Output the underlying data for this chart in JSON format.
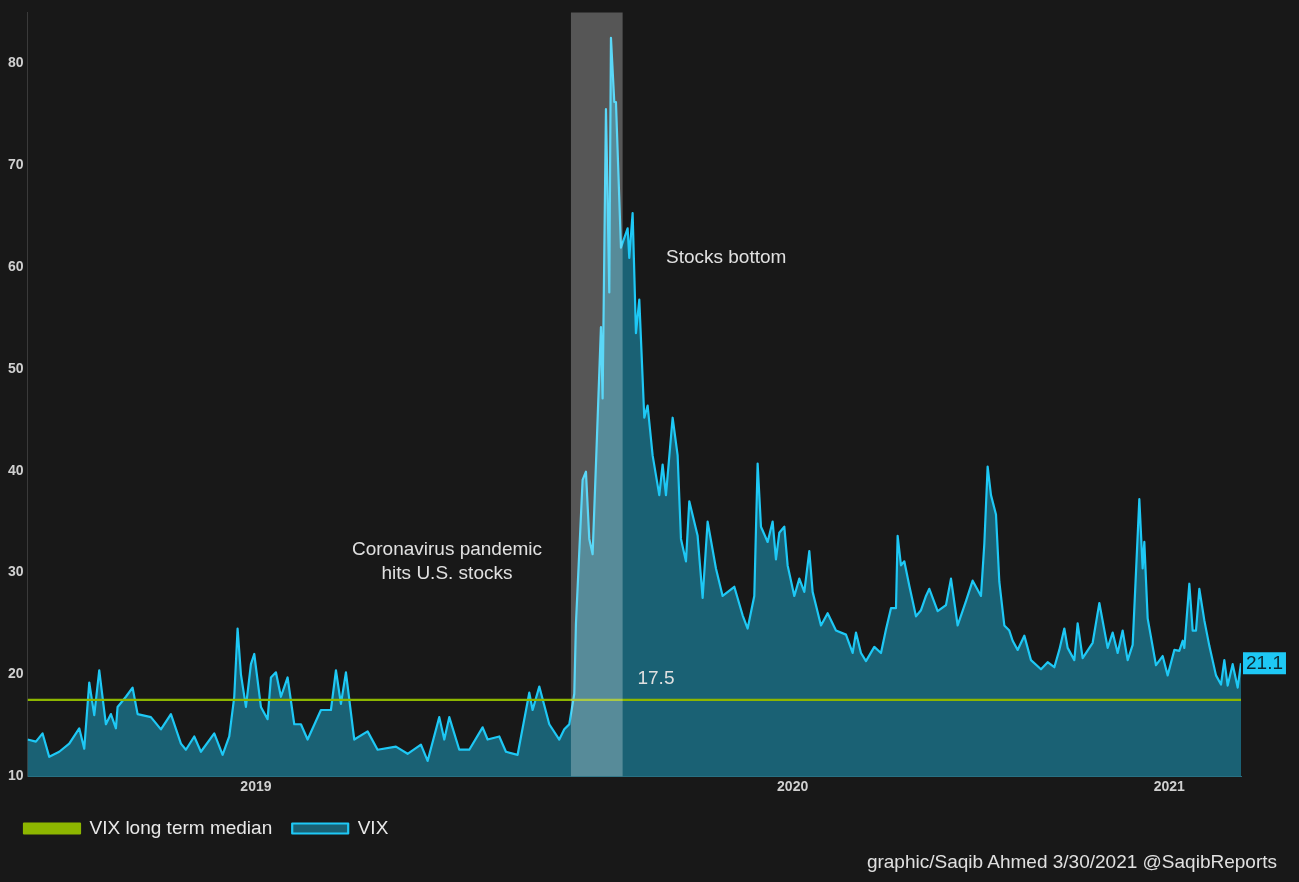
{
  "chart_data": {
    "type": "area",
    "x": [
      "2019-04-01",
      "2019-04-06",
      "2019-04-10",
      "2019-04-14",
      "2019-04-20",
      "2019-04-26",
      "2019-05-02",
      "2019-05-05",
      "2019-05-08",
      "2019-05-11",
      "2019-05-14",
      "2019-05-18",
      "2019-05-21",
      "2019-05-24",
      "2019-05-25",
      "2019-05-30",
      "2019-06-03",
      "2019-06-06",
      "2019-06-14",
      "2019-06-20",
      "2019-06-26",
      "2019-07-02",
      "2019-07-05",
      "2019-07-10",
      "2019-07-14",
      "2019-07-22",
      "2019-07-27",
      "2019-07-31",
      "2019-08-03",
      "2019-08-05",
      "2019-08-07",
      "2019-08-10",
      "2019-08-13",
      "2019-08-15",
      "2019-08-19",
      "2019-08-23",
      "2019-08-25",
      "2019-08-28",
      "2019-08-31",
      "2019-09-04",
      "2019-09-08",
      "2019-09-12",
      "2019-09-16",
      "2019-09-24",
      "2019-09-30",
      "2019-10-03",
      "2019-10-06",
      "2019-10-09",
      "2019-10-14",
      "2019-10-22",
      "2019-10-28",
      "2019-11-08",
      "2019-11-15",
      "2019-11-23",
      "2019-11-27",
      "2019-12-04",
      "2019-12-07",
      "2019-12-10",
      "2019-12-16",
      "2019-12-22",
      "2019-12-30",
      "2020-01-02",
      "2020-01-09",
      "2020-01-13",
      "2020-01-20",
      "2020-01-27",
      "2020-01-29",
      "2020-02-02",
      "2020-02-08",
      "2020-02-14",
      "2020-02-17",
      "2020-02-20",
      "2020-02-23",
      "2020-02-24",
      "2020-02-28",
      "2020-03-01",
      "2020-03-03",
      "2020-03-05",
      "2020-03-07",
      "2020-03-10",
      "2020-03-11",
      "2020-03-13",
      "2020-03-15",
      "2020-03-16",
      "2020-03-18",
      "2020-03-19",
      "2020-03-22",
      "2020-03-26",
      "2020-03-27",
      "2020-03-29",
      "2020-03-31",
      "2020-04-02",
      "2020-04-05",
      "2020-04-07",
      "2020-04-10",
      "2020-04-14",
      "2020-04-16",
      "2020-04-18",
      "2020-04-22",
      "2020-04-25",
      "2020-04-27",
      "2020-04-30",
      "2020-05-02",
      "2020-05-07",
      "2020-05-10",
      "2020-05-13",
      "2020-05-18",
      "2020-05-22",
      "2020-05-29",
      "2020-06-03",
      "2020-06-06",
      "2020-06-10",
      "2020-06-12",
      "2020-06-14",
      "2020-06-18",
      "2020-06-21",
      "2020-06-23",
      "2020-06-25",
      "2020-06-28",
      "2020-06-30",
      "2020-07-04",
      "2020-07-07",
      "2020-07-10",
      "2020-07-13",
      "2020-07-15",
      "2020-07-20",
      "2020-07-24",
      "2020-07-29",
      "2020-08-04",
      "2020-08-08",
      "2020-08-10",
      "2020-08-13",
      "2020-08-16",
      "2020-08-21",
      "2020-08-25",
      "2020-08-28",
      "2020-08-31",
      "2020-09-03",
      "2020-09-04",
      "2020-09-06",
      "2020-09-08",
      "2020-09-11",
      "2020-09-15",
      "2020-09-18",
      "2020-09-21",
      "2020-09-23",
      "2020-09-28",
      "2020-10-03",
      "2020-10-06",
      "2020-10-10",
      "2020-10-15",
      "2020-10-19",
      "2020-10-24",
      "2020-10-26",
      "2020-10-28",
      "2020-10-30",
      "2020-11-02",
      "2020-11-04",
      "2020-11-07",
      "2020-11-10",
      "2020-11-12",
      "2020-11-15",
      "2020-11-19",
      "2020-11-23",
      "2020-11-29",
      "2020-12-03",
      "2020-12-07",
      "2020-12-10",
      "2020-12-13",
      "2020-12-15",
      "2020-12-19",
      "2020-12-21",
      "2020-12-24",
      "2020-12-30",
      "2021-01-03",
      "2021-01-08",
      "2021-01-11",
      "2021-01-14",
      "2021-01-17",
      "2021-01-20",
      "2021-01-23",
      "2021-01-27",
      "2021-01-29",
      "2021-01-30",
      "2021-02-01",
      "2021-02-06",
      "2021-02-10",
      "2021-02-13",
      "2021-02-17",
      "2021-02-20",
      "2021-02-22",
      "2021-02-23",
      "2021-02-26",
      "2021-02-28",
      "2021-03-02",
      "2021-03-04",
      "2021-03-07",
      "2021-03-10",
      "2021-03-14",
      "2021-03-17",
      "2021-03-19",
      "2021-03-21",
      "2021-03-24",
      "2021-03-27",
      "2021-03-29"
    ],
    "series": [
      {
        "name": "VIX",
        "color": "#1ec8f5",
        "values": [
          13.6,
          13.4,
          14.2,
          11.9,
          12.4,
          13.2,
          14.7,
          12.7,
          19.2,
          16.0,
          20.4,
          15.1,
          16.1,
          14.7,
          16.8,
          17.8,
          18.7,
          16.1,
          15.8,
          14.6,
          16.1,
          13.2,
          12.6,
          13.9,
          12.4,
          14.2,
          12.1,
          13.9,
          17.8,
          24.5,
          20.0,
          16.8,
          21.0,
          22.0,
          16.8,
          15.6,
          19.7,
          20.2,
          17.8,
          19.7,
          15.1,
          15.1,
          13.6,
          16.5,
          16.5,
          20.4,
          17.1,
          20.2,
          13.6,
          14.4,
          12.6,
          12.9,
          12.2,
          13.1,
          11.5,
          15.8,
          13.6,
          15.8,
          12.6,
          12.6,
          14.8,
          13.6,
          13.9,
          12.4,
          12.1,
          18.2,
          16.5,
          18.8,
          15.1,
          13.6,
          14.6,
          15.1,
          18.1,
          25.0,
          39.1,
          39.9,
          33.3,
          31.8,
          40.6,
          54.1,
          47.1,
          75.5,
          57.5,
          82.5,
          76.2,
          76.2,
          61.9,
          63.8,
          60.9,
          65.3,
          53.5,
          56.8,
          45.2,
          46.4,
          41.5,
          37.6,
          40.6,
          37.6,
          45.2,
          41.5,
          33.3,
          31.1,
          37.0,
          33.6,
          27.5,
          35.0,
          30.4,
          27.7,
          28.6,
          25.8,
          24.5,
          27.7,
          40.7,
          34.5,
          33.0,
          35.0,
          31.3,
          33.9,
          34.5,
          30.7,
          27.7,
          29.4,
          28.1,
          32.1,
          28.1,
          24.8,
          26.0,
          24.3,
          23.9,
          22.1,
          24.1,
          22.1,
          21.3,
          22.7,
          22.1,
          24.4,
          26.5,
          26.5,
          33.6,
          30.7,
          31.1,
          28.7,
          25.7,
          26.3,
          27.7,
          28.4,
          26.2,
          26.8,
          29.4,
          24.8,
          27.2,
          29.2,
          27.7,
          32.8,
          40.4,
          37.6,
          35.7,
          29.1,
          24.8,
          24.3,
          23.3,
          22.4,
          23.8,
          21.4,
          20.5,
          21.2,
          20.7,
          22.4,
          24.5,
          22.6,
          21.4,
          25.0,
          21.6,
          23.1,
          27.0,
          22.6,
          24.1,
          22.1,
          24.3,
          21.4,
          22.9,
          37.2,
          30.4,
          33.0,
          25.5,
          20.9,
          21.8,
          19.9,
          22.4,
          22.3,
          23.3,
          22.6,
          28.9,
          24.3,
          24.3,
          28.4,
          25.3,
          22.8,
          19.9,
          19.0,
          21.4,
          18.9,
          21.0,
          18.7,
          21.1
        ]
      },
      {
        "name": "VIX long term median",
        "type": "line",
        "color": "#8db600",
        "x": [
          "2019-04-01",
          "2021-03-29"
        ],
        "values": [
          17.5,
          17.5
        ]
      }
    ],
    "xlim": [
      "2019-04-01",
      "2021-03-29"
    ],
    "xticks": [
      {
        "value": "2019-08-16",
        "label": "2019"
      },
      {
        "value": "2020-07-03",
        "label": "2020"
      },
      {
        "value": "2021-02-14",
        "label": "2021"
      }
    ],
    "ylim": [
      10,
      85
    ],
    "yticks": [
      10,
      20,
      30,
      40,
      50,
      60,
      70,
      80
    ],
    "bands": [
      {
        "axis": "x",
        "from": "2020-02-21",
        "to": "2020-03-23",
        "color": "#ffffff"
      }
    ],
    "annotations": [
      "Coronavirus pandemic\nhits U.S. stocks",
      "Stocks bottom",
      {
        "text": "17.5",
        "x": "2020-04-12",
        "y": 17.5
      },
      {
        "text": "21.1",
        "x": "2021-03-29",
        "y": 21.1
      },
      "graphic/Saqib Ahmed 3/30/2021 @SaqibReports"
    ],
    "grid": false,
    "legend": "bottom left",
    "marker": "none",
    "line_style": "solid"
  }
}
